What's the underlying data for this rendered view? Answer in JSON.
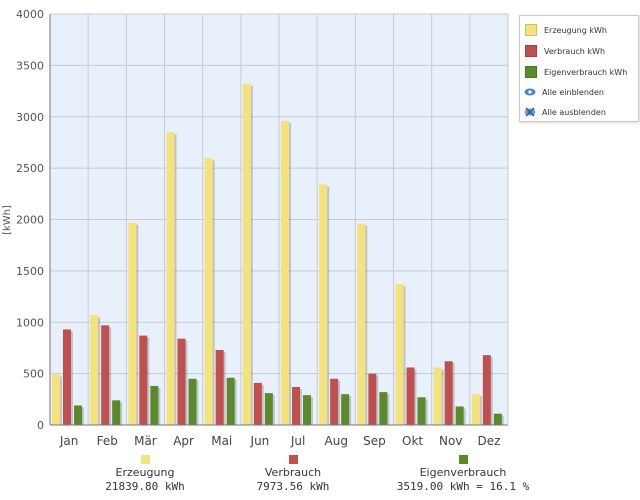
{
  "chart_data": {
    "type": "bar",
    "ylabel": "[kWh]",
    "ylim": [
      0,
      4000
    ],
    "yticks": [
      0,
      500,
      1000,
      1500,
      2000,
      2500,
      3000,
      3500,
      4000
    ],
    "grid": true,
    "legend_position": "right",
    "categories": [
      "Jan",
      "Feb",
      "Mär",
      "Apr",
      "Mai",
      "Jun",
      "Jul",
      "Aug",
      "Sep",
      "Okt",
      "Nov",
      "Dez"
    ],
    "series": [
      {
        "name": "Erzeugung kWh",
        "color": "#f4e37a",
        "values": [
          490,
          1070,
          1970,
          2850,
          2600,
          3320,
          2960,
          2340,
          1960,
          1370,
          560,
          300
        ]
      },
      {
        "name": "Verbrauch kWh",
        "color": "#c0504d",
        "values": [
          930,
          970,
          870,
          840,
          730,
          410,
          370,
          450,
          500,
          560,
          620,
          680
        ]
      },
      {
        "name": "Eigenverbrauch kWh",
        "color": "#5a8a2a",
        "values": [
          190,
          240,
          380,
          450,
          460,
          310,
          290,
          300,
          320,
          270,
          180,
          110
        ]
      }
    ]
  },
  "legend": {
    "items": [
      "Erzeugung kWh",
      "Verbrauch kWh",
      "Eigenverbrauch kWh"
    ],
    "show_all": "Alle einblenden",
    "hide_all": "Alle ausblenden",
    "show_all_icon": "eye-icon",
    "hide_all_icon": "eye-crossed-icon"
  },
  "summary": [
    {
      "label": "Erzeugung",
      "value": "21839.80 kWh",
      "color": "#f4e37a"
    },
    {
      "label": "Verbrauch",
      "value": "7973.56 kWh",
      "color": "#c0504d"
    },
    {
      "label": "Eigenverbrauch",
      "value": "3519.00 kWh = 16.1 %",
      "color": "#5a8a2a"
    }
  ],
  "colors": {
    "plot_background": "#e8f0fc",
    "grid": "#c5ccd6"
  }
}
